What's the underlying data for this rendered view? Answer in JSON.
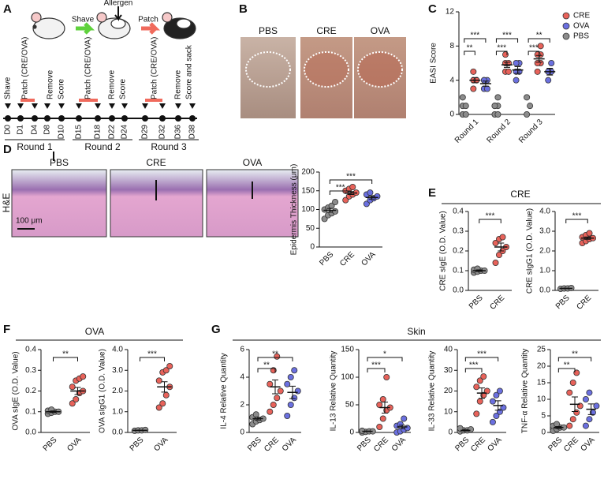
{
  "panel_labels": [
    "A",
    "B",
    "C",
    "D",
    "E",
    "F",
    "G"
  ],
  "timeline": {
    "allergen": "Allergen",
    "arrows": [
      "Shave",
      "Patch"
    ],
    "events": [
      "Shave",
      "Patch (CRE/OVA)",
      "Remove",
      "Score",
      "Patch (CRE/OVA)",
      "Remove",
      "Score",
      "Patch (CRE/OVA)",
      "Remove",
      "Score and sack"
    ],
    "days": [
      "D0",
      "D1",
      "D4",
      "D8",
      "D10",
      "D15",
      "D18",
      "D22",
      "D24",
      "D29",
      "D32",
      "D36",
      "D38"
    ],
    "rounds": [
      "Round 1",
      "Round 2",
      "Round 3"
    ]
  },
  "photos": {
    "labels": [
      "PBS",
      "CRE",
      "OVA"
    ]
  },
  "histology": {
    "labels": [
      "PBS",
      "CRE",
      "OVA"
    ],
    "stain": "H&E",
    "scale": "100 μm"
  },
  "group_headers": [
    "CRE",
    "OVA",
    "Skin"
  ],
  "chart_data": [
    {
      "type": "grouped-dot",
      "ylabel": "EASI Score",
      "categories": [
        "Round 1",
        "Round 2",
        "Round 3"
      ],
      "ylim": [
        0,
        12
      ],
      "yticks": [
        0,
        4,
        8,
        12
      ],
      "series": [
        {
          "name": "CRE",
          "color": "#e8625a",
          "values": [
            [
              3,
              4,
              4,
              4,
              5
            ],
            [
              5,
              5,
              6,
              6,
              7
            ],
            [
              5,
              6,
              6,
              7,
              7,
              8
            ]
          ],
          "means": [
            4,
            5.8,
            6.5
          ],
          "sems": [
            0.3,
            0.3,
            0.4
          ]
        },
        {
          "name": "OVA",
          "color": "#6b70e0",
          "values": [
            [
              3,
              3,
              4,
              4,
              4
            ],
            [
              4,
              5,
              5,
              6,
              6
            ],
            [
              4,
              5,
              5,
              6
            ]
          ],
          "means": [
            3.6,
            5.2,
            5
          ],
          "sems": [
            0.3,
            0.4,
            0.4
          ]
        },
        {
          "name": "PBS",
          "color": "#8c8c8c",
          "values": [
            [
              0,
              0,
              1,
              1,
              2
            ],
            [
              0,
              0,
              1,
              1,
              1,
              2
            ],
            [
              0,
              1,
              2
            ]
          ]
        }
      ],
      "annotations": [
        {
          "label": "**",
          "category": "Round 1",
          "pair": [
            "PBS",
            "CRE"
          ]
        },
        {
          "label": "***",
          "category": "Round 1",
          "pair": [
            "PBS",
            "OVA"
          ]
        },
        {
          "label": "***",
          "category": "Round 2",
          "pair": [
            "PBS",
            "CRE"
          ]
        },
        {
          "label": "***",
          "category": "Round 2",
          "pair": [
            "PBS",
            "OVA"
          ]
        },
        {
          "label": "***",
          "category": "Round 3",
          "pair": [
            "PBS",
            "CRE"
          ]
        },
        {
          "label": "**",
          "category": "Round 3",
          "pair": [
            "PBS",
            "OVA"
          ]
        }
      ]
    },
    {
      "type": "dot",
      "ylabel": "Epidermis Thickness (μm)",
      "categories": [
        "PBS",
        "CRE",
        "OVA"
      ],
      "colors": [
        "#8c8c8c",
        "#e8625a",
        "#6b70e0"
      ],
      "ylim": [
        0,
        200
      ],
      "yticks": [
        0,
        50,
        100,
        150,
        200
      ],
      "points": [
        [
          75,
          85,
          90,
          95,
          100,
          105,
          110,
          120
        ],
        [
          125,
          135,
          140,
          145,
          150,
          155,
          160
        ],
        [
          115,
          125,
          130,
          135,
          140,
          145
        ]
      ],
      "means": [
        98,
        144,
        132
      ],
      "sems": [
        5,
        4,
        4
      ],
      "annotations": [
        {
          "label": "***",
          "pair": [
            "PBS",
            "CRE"
          ]
        },
        {
          "label": "***",
          "pair": [
            "PBS",
            "OVA"
          ]
        }
      ]
    },
    {
      "type": "dot",
      "ylabel": "CRE sIgE (O.D. Value)",
      "categories": [
        "PBS",
        "CRE"
      ],
      "colors": [
        "#8c8c8c",
        "#e8625a"
      ],
      "ylim": [
        0,
        0.4
      ],
      "yticks": [
        {
          "value": 0,
          "label": "0.0"
        },
        {
          "value": 0.1,
          "label": "0.1"
        },
        {
          "value": 0.2,
          "label": "0.2"
        },
        {
          "value": 0.3,
          "label": "0.3"
        },
        {
          "value": 0.4,
          "label": "0.4"
        }
      ],
      "points": [
        [
          0.09,
          0.095,
          0.1,
          0.1,
          0.105,
          0.11
        ],
        [
          0.14,
          0.18,
          0.2,
          0.22,
          0.24,
          0.26,
          0.27
        ]
      ],
      "means": [
        0.1,
        0.22
      ],
      "sems": [
        0.004,
        0.02
      ],
      "annotations": [
        {
          "label": "***",
          "pair": [
            "PBS",
            "CRE"
          ]
        }
      ]
    },
    {
      "type": "dot",
      "ylabel": "CRE sIgG1 (O.D. Value)",
      "categories": [
        "PBS",
        "CRE"
      ],
      "colors": [
        "#8c8c8c",
        "#e8625a"
      ],
      "ylim": [
        0,
        4
      ],
      "yticks": [
        {
          "value": 0,
          "label": "0.0"
        },
        {
          "value": 1,
          "label": "1.0"
        },
        {
          "value": 2,
          "label": "2.0"
        },
        {
          "value": 3,
          "label": "3.0"
        },
        {
          "value": 4,
          "label": "4.0"
        }
      ],
      "points": [
        [
          0.08,
          0.1,
          0.1,
          0.12
        ],
        [
          2.4,
          2.5,
          2.6,
          2.65,
          2.7,
          2.8,
          2.9
        ]
      ],
      "means": [
        0.1,
        2.65
      ],
      "sems": [
        0.01,
        0.06
      ],
      "annotations": [
        {
          "label": "***",
          "pair": [
            "PBS",
            "CRE"
          ]
        }
      ]
    },
    {
      "type": "dot",
      "ylabel": "OVA sIgE (O.D. Value)",
      "categories": [
        "PBS",
        "OVA"
      ],
      "colors": [
        "#8c8c8c",
        "#e8625a"
      ],
      "ylim": [
        0,
        0.4
      ],
      "yticks": [
        {
          "value": 0,
          "label": "0.0"
        },
        {
          "value": 0.1,
          "label": "0.1"
        },
        {
          "value": 0.2,
          "label": "0.2"
        },
        {
          "value": 0.3,
          "label": "0.3"
        },
        {
          "value": 0.4,
          "label": "0.4"
        }
      ],
      "points": [
        [
          0.09,
          0.095,
          0.1,
          0.1,
          0.105,
          0.11
        ],
        [
          0.14,
          0.16,
          0.19,
          0.2,
          0.22,
          0.25,
          0.26,
          0.27
        ]
      ],
      "means": [
        0.1,
        0.2
      ],
      "sems": [
        0.004,
        0.017
      ],
      "annotations": [
        {
          "label": "**",
          "pair": [
            "PBS",
            "OVA"
          ]
        }
      ]
    },
    {
      "type": "dot",
      "ylabel": "OVA sIgG1 (O.D. Value)",
      "categories": [
        "PBS",
        "OVA"
      ],
      "colors": [
        "#8c8c8c",
        "#e8625a"
      ],
      "ylim": [
        0,
        4
      ],
      "yticks": [
        {
          "value": 0,
          "label": "0.0"
        },
        {
          "value": 1,
          "label": "1.0"
        },
        {
          "value": 2,
          "label": "2.0"
        },
        {
          "value": 3,
          "label": "3.0"
        },
        {
          "value": 4,
          "label": "4.0"
        }
      ],
      "points": [
        [
          0.08,
          0.1,
          0.1,
          0.12
        ],
        [
          1.2,
          1.4,
          1.8,
          2.2,
          2.5,
          2.9,
          3,
          3.2
        ]
      ],
      "means": [
        0.1,
        2.2
      ],
      "sems": [
        0.01,
        0.25
      ],
      "annotations": [
        {
          "label": "***",
          "pair": [
            "PBS",
            "OVA"
          ]
        }
      ]
    },
    {
      "type": "dot",
      "ylabel": "IL-4 Relative Quantity",
      "categories": [
        "PBS",
        "CRE",
        "OVA"
      ],
      "colors": [
        "#8c8c8c",
        "#e8625a",
        "#6b70e0"
      ],
      "ylim": [
        0,
        6
      ],
      "yticks": [
        0,
        2,
        4,
        6
      ],
      "points": [
        [
          0.6,
          0.8,
          0.9,
          1,
          1.1,
          1.3
        ],
        [
          1.5,
          2,
          2.5,
          3,
          3.5,
          4.5,
          5.5
        ],
        [
          1.2,
          2,
          2.5,
          3,
          3.5,
          4,
          4.5
        ]
      ],
      "means": [
        1,
        3.3,
        2.9
      ],
      "sems": [
        0.1,
        0.5,
        0.45
      ],
      "annotations": [
        {
          "label": "**",
          "pair": [
            "PBS",
            "CRE"
          ]
        },
        {
          "label": "**",
          "pair": [
            "PBS",
            "OVA"
          ]
        }
      ]
    },
    {
      "type": "dot",
      "ylabel": "IL-13 Relative Quantity",
      "categories": [
        "PBS",
        "CRE",
        "OVA"
      ],
      "colors": [
        "#8c8c8c",
        "#e8625a",
        "#6b70e0"
      ],
      "ylim": [
        0,
        150
      ],
      "yticks": [
        0,
        50,
        100,
        150
      ],
      "points": [
        [
          0,
          1,
          2,
          2,
          3
        ],
        [
          10,
          25,
          40,
          45,
          50,
          60,
          100
        ],
        [
          0,
          2,
          5,
          8,
          12,
          15,
          25
        ]
      ],
      "means": [
        2,
        45,
        10
      ],
      "sems": [
        0.5,
        10,
        3
      ],
      "annotations": [
        {
          "label": "***",
          "pair": [
            "PBS",
            "CRE"
          ]
        },
        {
          "label": "*",
          "pair": [
            "PBS",
            "OVA"
          ]
        }
      ]
    },
    {
      "type": "dot",
      "ylabel": "IL-33 Relative Quantity",
      "categories": [
        "PBS",
        "CRE",
        "OVA"
      ],
      "colors": [
        "#8c8c8c",
        "#e8625a",
        "#6b70e0"
      ],
      "ylim": [
        0,
        40
      ],
      "yticks": [
        0,
        10,
        20,
        30,
        40
      ],
      "points": [
        [
          0.5,
          1,
          1,
          1.5,
          2
        ],
        [
          9,
          15,
          18,
          20,
          22,
          25,
          27
        ],
        [
          5,
          8,
          10,
          12,
          15,
          18,
          20
        ]
      ],
      "means": [
        1,
        19,
        13
      ],
      "sems": [
        0.3,
        2.5,
        2.3
      ],
      "annotations": [
        {
          "label": "***",
          "pair": [
            "PBS",
            "CRE"
          ]
        },
        {
          "label": "***",
          "pair": [
            "PBS",
            "OVA"
          ]
        }
      ]
    },
    {
      "type": "dot",
      "ylabel": "TNF-α Relative Quantity",
      "categories": [
        "PBS",
        "CRE",
        "OVA"
      ],
      "colors": [
        "#8c8c8c",
        "#e8625a",
        "#6b70e0"
      ],
      "ylim": [
        0,
        25
      ],
      "yticks": [
        0,
        5,
        10,
        15,
        20,
        25
      ],
      "points": [
        [
          0.5,
          1,
          1.5,
          1.5,
          2,
          2.5
        ],
        [
          2,
          4,
          6,
          8,
          12,
          15,
          18
        ],
        [
          2,
          4,
          6,
          8,
          10,
          12
        ]
      ],
      "means": [
        1.5,
        8.5,
        7
      ],
      "sems": [
        0.3,
        2.2,
        1.6
      ],
      "annotations": [
        {
          "label": "**",
          "pair": [
            "PBS",
            "CRE"
          ]
        },
        {
          "label": "**",
          "pair": [
            "PBS",
            "OVA"
          ]
        }
      ]
    }
  ]
}
